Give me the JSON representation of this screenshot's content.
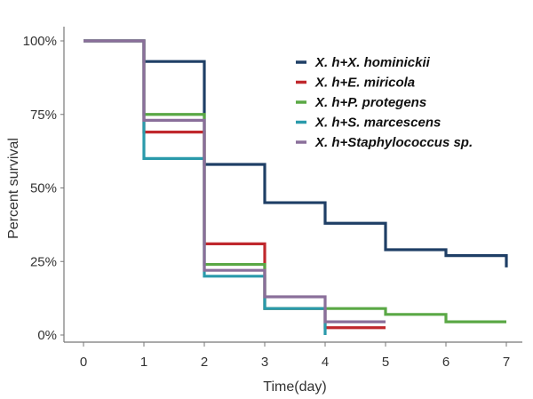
{
  "chart_data": {
    "type": "line",
    "subtype": "step (Kaplan-Meier survival)",
    "xlabel": "Time(day)",
    "ylabel": "Percent survival",
    "xlim": [
      0,
      7
    ],
    "ylim": [
      0,
      100
    ],
    "x_ticks": [
      "0",
      "1",
      "2",
      "3",
      "4",
      "5",
      "6",
      "7"
    ],
    "y_ticks": [
      "0%",
      "25%",
      "50%",
      "75%",
      "100%"
    ],
    "grid": false,
    "legend_position": "top-right",
    "series": [
      {
        "name": "X. h+X. hominickii",
        "color": "#1f3f66",
        "steps": [
          [
            0,
            100
          ],
          [
            1,
            93
          ],
          [
            2,
            58
          ],
          [
            3,
            45
          ],
          [
            4,
            38
          ],
          [
            5,
            29
          ],
          [
            6,
            27
          ],
          [
            7,
            23
          ]
        ],
        "end": 7
      },
      {
        "name": "X. h+E. miricola",
        "color": "#c0282d",
        "steps": [
          [
            0,
            100
          ],
          [
            1,
            69
          ],
          [
            2,
            31
          ],
          [
            3,
            9
          ],
          [
            4,
            2.5
          ]
        ],
        "end": 5
      },
      {
        "name": "X. h+P. protegens",
        "color": "#5aa845",
        "steps": [
          [
            0,
            100
          ],
          [
            1,
            75
          ],
          [
            2,
            24
          ],
          [
            3,
            9
          ],
          [
            5,
            7
          ],
          [
            6,
            4.5
          ]
        ],
        "end": 7
      },
      {
        "name": "X. h+S. marcescens",
        "color": "#2a9aab",
        "steps": [
          [
            0,
            100
          ],
          [
            1,
            60
          ],
          [
            2,
            20
          ],
          [
            3,
            9
          ],
          [
            4,
            0
          ]
        ],
        "end": 4
      },
      {
        "name": "X. h+Staphylococcus sp.",
        "color": "#8a6f9a",
        "steps": [
          [
            0,
            100
          ],
          [
            1,
            73
          ],
          [
            2,
            22
          ],
          [
            3,
            13
          ],
          [
            4,
            4.5
          ]
        ],
        "end": 5
      }
    ]
  }
}
